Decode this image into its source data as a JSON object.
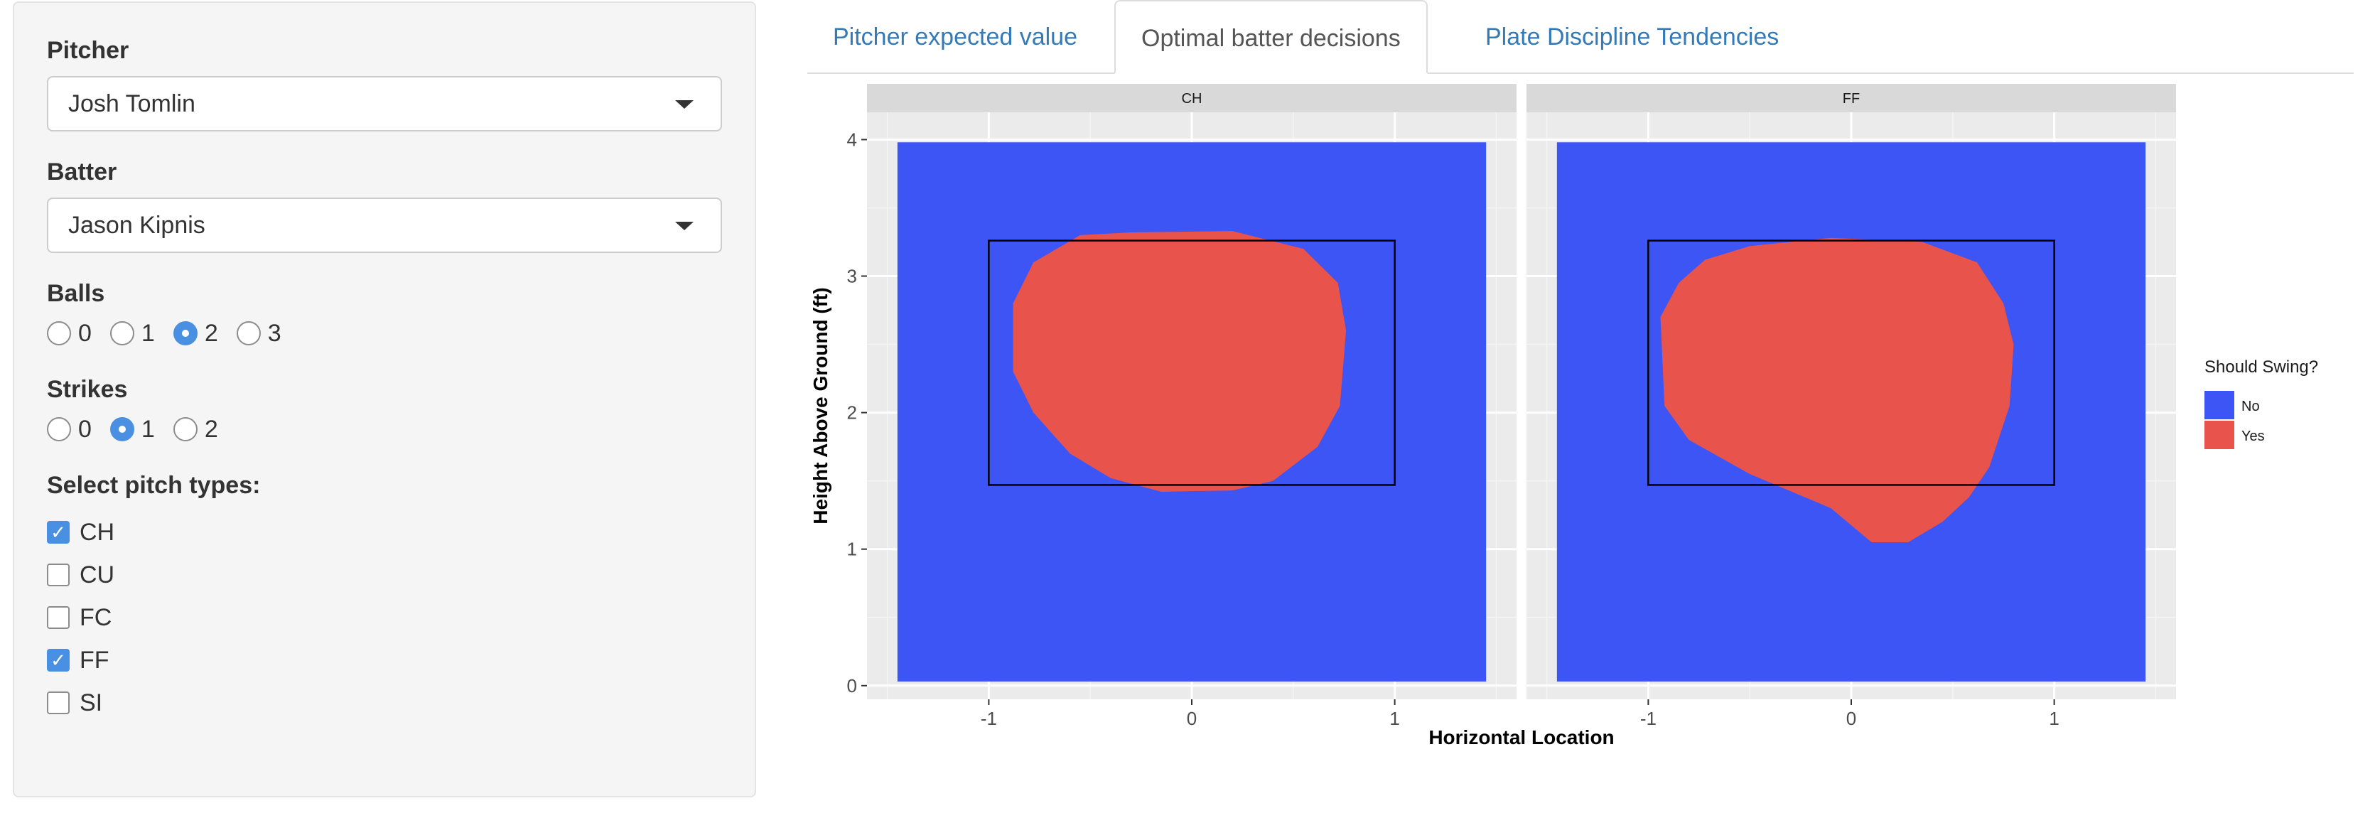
{
  "sidebar": {
    "pitcher": {
      "label": "Pitcher",
      "value": "Josh Tomlin"
    },
    "batter": {
      "label": "Batter",
      "value": "Jason Kipnis"
    },
    "balls": {
      "label": "Balls",
      "options": [
        "0",
        "1",
        "2",
        "3"
      ],
      "selected": "2"
    },
    "strikes": {
      "label": "Strikes",
      "options": [
        "0",
        "1",
        "2"
      ],
      "selected": "1"
    },
    "pitch_types": {
      "label": "Select pitch types:",
      "items": [
        {
          "label": "CH",
          "checked": true
        },
        {
          "label": "CU",
          "checked": false
        },
        {
          "label": "FC",
          "checked": false
        },
        {
          "label": "FF",
          "checked": true
        },
        {
          "label": "SI",
          "checked": false
        }
      ]
    }
  },
  "tabs": [
    {
      "label": "Pitcher expected value",
      "active": false
    },
    {
      "label": "Optimal batter decisions",
      "active": true
    },
    {
      "label": "Plate Discipline Tendencies",
      "active": false
    }
  ],
  "chart_data": {
    "type": "heatmap",
    "facets": [
      "CH",
      "FF"
    ],
    "xlabel": "Horizontal Location",
    "ylabel": "Height Above Ground (ft)",
    "x_ticks": [
      "-1",
      "0",
      "1"
    ],
    "y_ticks": [
      "0",
      "1",
      "2",
      "3",
      "4"
    ],
    "xlim": [
      -1.6,
      1.6
    ],
    "ylim": [
      -0.1,
      4.2
    ],
    "legend": {
      "title": "Should Swing?",
      "position": "right",
      "entries": [
        {
          "label": "No",
          "color": "#3d55f4"
        },
        {
          "label": "Yes",
          "color": "#e8534b"
        }
      ]
    },
    "colors": {
      "no": "#3d55f4",
      "yes": "#e8534b",
      "panel_bg": "#ebebeb",
      "strip_bg": "#d9d9d9"
    },
    "grid_extent": {
      "x": [
        -1.45,
        1.45
      ],
      "y": [
        0.03,
        3.98
      ]
    },
    "strike_zone": {
      "x": [
        -1.0,
        1.0
      ],
      "y": [
        1.47,
        3.26
      ]
    },
    "swing_regions": [
      {
        "facet": "CH",
        "outline": [
          [
            -0.55,
            3.3
          ],
          [
            -0.3,
            3.32
          ],
          [
            0.2,
            3.33
          ],
          [
            0.55,
            3.2
          ],
          [
            0.72,
            2.95
          ],
          [
            0.76,
            2.6
          ],
          [
            0.73,
            2.05
          ],
          [
            0.62,
            1.75
          ],
          [
            0.4,
            1.5
          ],
          [
            0.2,
            1.43
          ],
          [
            -0.15,
            1.42
          ],
          [
            -0.4,
            1.52
          ],
          [
            -0.6,
            1.7
          ],
          [
            -0.78,
            2.0
          ],
          [
            -0.88,
            2.3
          ],
          [
            -0.88,
            2.8
          ],
          [
            -0.78,
            3.1
          ]
        ]
      },
      {
        "facet": "FF",
        "outline": [
          [
            -0.5,
            3.22
          ],
          [
            -0.1,
            3.28
          ],
          [
            0.35,
            3.25
          ],
          [
            0.62,
            3.1
          ],
          [
            0.75,
            2.8
          ],
          [
            0.8,
            2.5
          ],
          [
            0.78,
            2.05
          ],
          [
            0.68,
            1.6
          ],
          [
            0.58,
            1.38
          ],
          [
            0.45,
            1.2
          ],
          [
            0.28,
            1.05
          ],
          [
            0.1,
            1.05
          ],
          [
            -0.1,
            1.3
          ],
          [
            -0.5,
            1.55
          ],
          [
            -0.8,
            1.8
          ],
          [
            -0.92,
            2.05
          ],
          [
            -0.94,
            2.7
          ],
          [
            -0.85,
            2.95
          ],
          [
            -0.72,
            3.12
          ]
        ]
      }
    ]
  }
}
